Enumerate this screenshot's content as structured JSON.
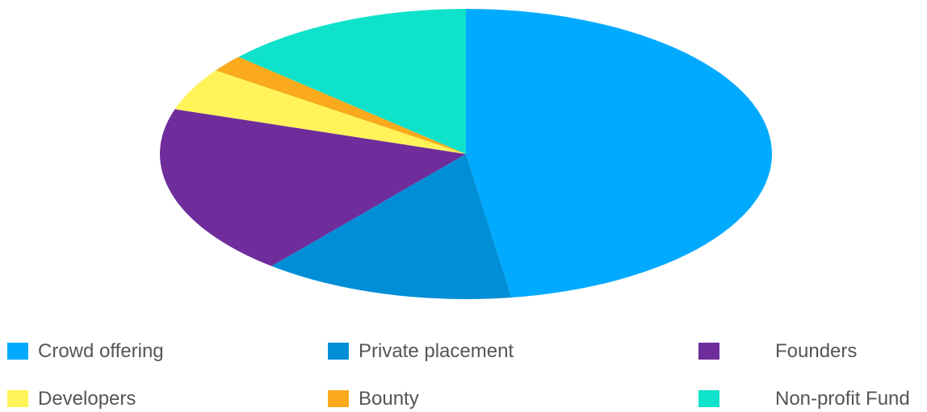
{
  "chart_data": {
    "type": "pie",
    "title": "",
    "slices": [
      {
        "label": "Crowd offering",
        "value": 50,
        "color": "#00AAFF"
      },
      {
        "label": "Private placement",
        "value": 14,
        "color": "#008FD7"
      },
      {
        "label": "Founders",
        "value": 20,
        "color": "#6F2D9C"
      },
      {
        "label": "Developers",
        "value": 5,
        "color": "#FFF359"
      },
      {
        "label": "Bounty",
        "value": 2,
        "color": "#FAAA1C"
      },
      {
        "label": "Non-profit Fund",
        "value": 14,
        "color": "#0FE2CB"
      }
    ],
    "legend_position": "bottom",
    "start_angle": "12 o'clock",
    "direction": "clockwise"
  }
}
